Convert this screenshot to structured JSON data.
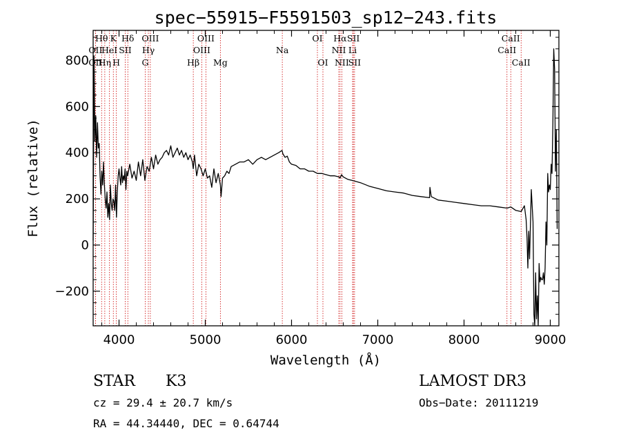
{
  "chart_data": {
    "type": "line",
    "title": "spec−55915−F5591503_sp12−243.fits",
    "xlabel": "Wavelength (Å)",
    "ylabel": "Flux (relative)",
    "xlim": [
      3700,
      9100
    ],
    "ylim": [
      -350,
      930
    ],
    "x_ticks": [
      {
        "value": 4000,
        "label": "4000"
      },
      {
        "value": 5000,
        "label": "5000"
      },
      {
        "value": 6000,
        "label": "6000"
      },
      {
        "value": 7000,
        "label": "7000"
      },
      {
        "value": 8000,
        "label": "8000"
      },
      {
        "value": 9000,
        "label": "9000"
      }
    ],
    "y_ticks": [
      {
        "value": -200,
        "label": "−200"
      },
      {
        "value": 0,
        "label": "0"
      },
      {
        "value": 200,
        "label": "200"
      },
      {
        "value": 400,
        "label": "400"
      },
      {
        "value": 600,
        "label": "600"
      },
      {
        "value": 800,
        "label": "800"
      }
    ],
    "series": [
      {
        "name": "flux",
        "x": [
          3700,
          3710,
          3720,
          3730,
          3740,
          3750,
          3760,
          3770,
          3780,
          3790,
          3800,
          3810,
          3820,
          3830,
          3840,
          3850,
          3860,
          3870,
          3880,
          3890,
          3900,
          3910,
          3920,
          3930,
          3940,
          3950,
          3960,
          3970,
          3980,
          3990,
          4000,
          4010,
          4020,
          4030,
          4040,
          4050,
          4060,
          4070,
          4080,
          4090,
          4100,
          4125,
          4150,
          4175,
          4200,
          4225,
          4250,
          4275,
          4300,
          4325,
          4350,
          4375,
          4400,
          4425,
          4450,
          4475,
          4500,
          4525,
          4550,
          4575,
          4600,
          4625,
          4650,
          4675,
          4700,
          4725,
          4750,
          4775,
          4800,
          4825,
          4850,
          4861,
          4875,
          4900,
          4925,
          4950,
          4975,
          5000,
          5025,
          5050,
          5075,
          5100,
          5125,
          5150,
          5175,
          5183,
          5200,
          5225,
          5250,
          5275,
          5300,
          5350,
          5400,
          5450,
          5500,
          5550,
          5600,
          5650,
          5700,
          5750,
          5800,
          5850,
          5890,
          5900,
          5925,
          5950,
          5975,
          6000,
          6050,
          6100,
          6150,
          6200,
          6250,
          6300,
          6350,
          6400,
          6450,
          6500,
          6550,
          6563,
          6580,
          6600,
          6650,
          6700,
          6750,
          6800,
          6900,
          7000,
          7100,
          7200,
          7300,
          7400,
          7500,
          7600,
          7605,
          7620,
          7700,
          7800,
          7900,
          8000,
          8100,
          8200,
          8300,
          8400,
          8500,
          8542,
          8600,
          8662,
          8700,
          8720,
          8730,
          8740,
          8750,
          8760,
          8780,
          8800,
          8810,
          8820,
          8830,
          8840,
          8850,
          8860,
          8870,
          8880,
          8890,
          8900,
          8910,
          8920,
          8930,
          8940,
          8950,
          8960,
          8970,
          8980,
          8990,
          9000,
          9010,
          9020,
          9030,
          9040,
          9050,
          9060,
          9070,
          9080
        ],
        "flux": [
          20,
          820,
          450,
          560,
          380,
          530,
          420,
          440,
          300,
          220,
          320,
          260,
          360,
          260,
          200,
          160,
          230,
          120,
          180,
          110,
          260,
          180,
          150,
          200,
          190,
          150,
          260,
          120,
          230,
          300,
          330,
          290,
          260,
          340,
          270,
          300,
          280,
          330,
          240,
          320,
          300,
          350,
          290,
          320,
          280,
          360,
          300,
          370,
          280,
          340,
          320,
          380,
          330,
          390,
          350,
          370,
          380,
          400,
          410,
          390,
          430,
          380,
          400,
          420,
          390,
          410,
          380,
          400,
          370,
          390,
          360,
          330,
          390,
          300,
          350,
          330,
          300,
          330,
          290,
          300,
          250,
          330,
          270,
          310,
          260,
          210,
          290,
          300,
          320,
          310,
          340,
          350,
          360,
          360,
          370,
          350,
          370,
          380,
          370,
          380,
          390,
          400,
          410,
          395,
          380,
          385,
          360,
          350,
          345,
          330,
          330,
          320,
          320,
          310,
          310,
          305,
          300,
          300,
          295,
          290,
          305,
          295,
          285,
          280,
          275,
          270,
          255,
          245,
          235,
          230,
          225,
          215,
          210,
          205,
          250,
          210,
          195,
          190,
          185,
          180,
          175,
          170,
          170,
          165,
          160,
          165,
          150,
          145,
          170,
          110,
          30,
          -100,
          60,
          -60,
          240,
          100,
          -300,
          -360,
          -120,
          -320,
          -220,
          -350,
          -80,
          -160,
          -140,
          -150,
          -150,
          -120,
          -170,
          -100,
          100,
          0,
          310,
          230,
          260,
          240,
          350,
          310,
          530,
          850,
          760,
          320,
          500,
          70,
          530
        ]
      }
    ],
    "lines": [
      {
        "label": "Hθ",
        "x": 3798,
        "row": 0
      },
      {
        "label": "OII",
        "x": 3727,
        "row": 1
      },
      {
        "label": "OII",
        "x": 3727,
        "row": 2
      },
      {
        "label": "Hη",
        "x": 3835,
        "row": 2
      },
      {
        "label": "K",
        "x": 3934,
        "row": 0
      },
      {
        "label": "HeI",
        "x": 3889,
        "row": 1
      },
      {
        "label": "H",
        "x": 3969,
        "row": 2
      },
      {
        "label": "Hδ",
        "x": 4102,
        "row": 0
      },
      {
        "label": "SII",
        "x": 4072,
        "row": 1
      },
      {
        "label": "OIII",
        "x": 4363,
        "row": 0
      },
      {
        "label": "Hγ",
        "x": 4340,
        "row": 1
      },
      {
        "label": "G",
        "x": 4304,
        "row": 2
      },
      {
        "label": "Hβ",
        "x": 4861,
        "row": 2
      },
      {
        "label": "OIII",
        "x": 5007,
        "row": 0
      },
      {
        "label": "OIII",
        "x": 4959,
        "row": 1
      },
      {
        "label": "Mg",
        "x": 5175,
        "row": 2
      },
      {
        "label": "Na",
        "x": 5893,
        "row": 1
      },
      {
        "label": "OI",
        "x": 6300,
        "row": 0
      },
      {
        "label": "OI",
        "x": 6364,
        "row": 2
      },
      {
        "label": "Hα",
        "x": 6563,
        "row": 0
      },
      {
        "label": "NII",
        "x": 6548,
        "row": 1
      },
      {
        "label": "NII",
        "x": 6583,
        "row": 2
      },
      {
        "label": "SII",
        "x": 6717,
        "row": 0
      },
      {
        "label": "Li",
        "x": 6708,
        "row": 1
      },
      {
        "label": "SII",
        "x": 6731,
        "row": 2
      },
      {
        "label": "CaII",
        "x": 8542,
        "row": 0
      },
      {
        "label": "CaII",
        "x": 8498,
        "row": 1
      },
      {
        "label": "CaII",
        "x": 8662,
        "row": 2
      }
    ],
    "line_color": "#cc0000"
  },
  "info": {
    "class": "STAR",
    "subclass": "K3",
    "survey": "LAMOST DR3",
    "cz": "cz = 29.4 ± 20.7 km/s",
    "obs_date": "Obs−Date: 20111219",
    "radec": "RA =  44.34440, DEC =   0.64744"
  }
}
